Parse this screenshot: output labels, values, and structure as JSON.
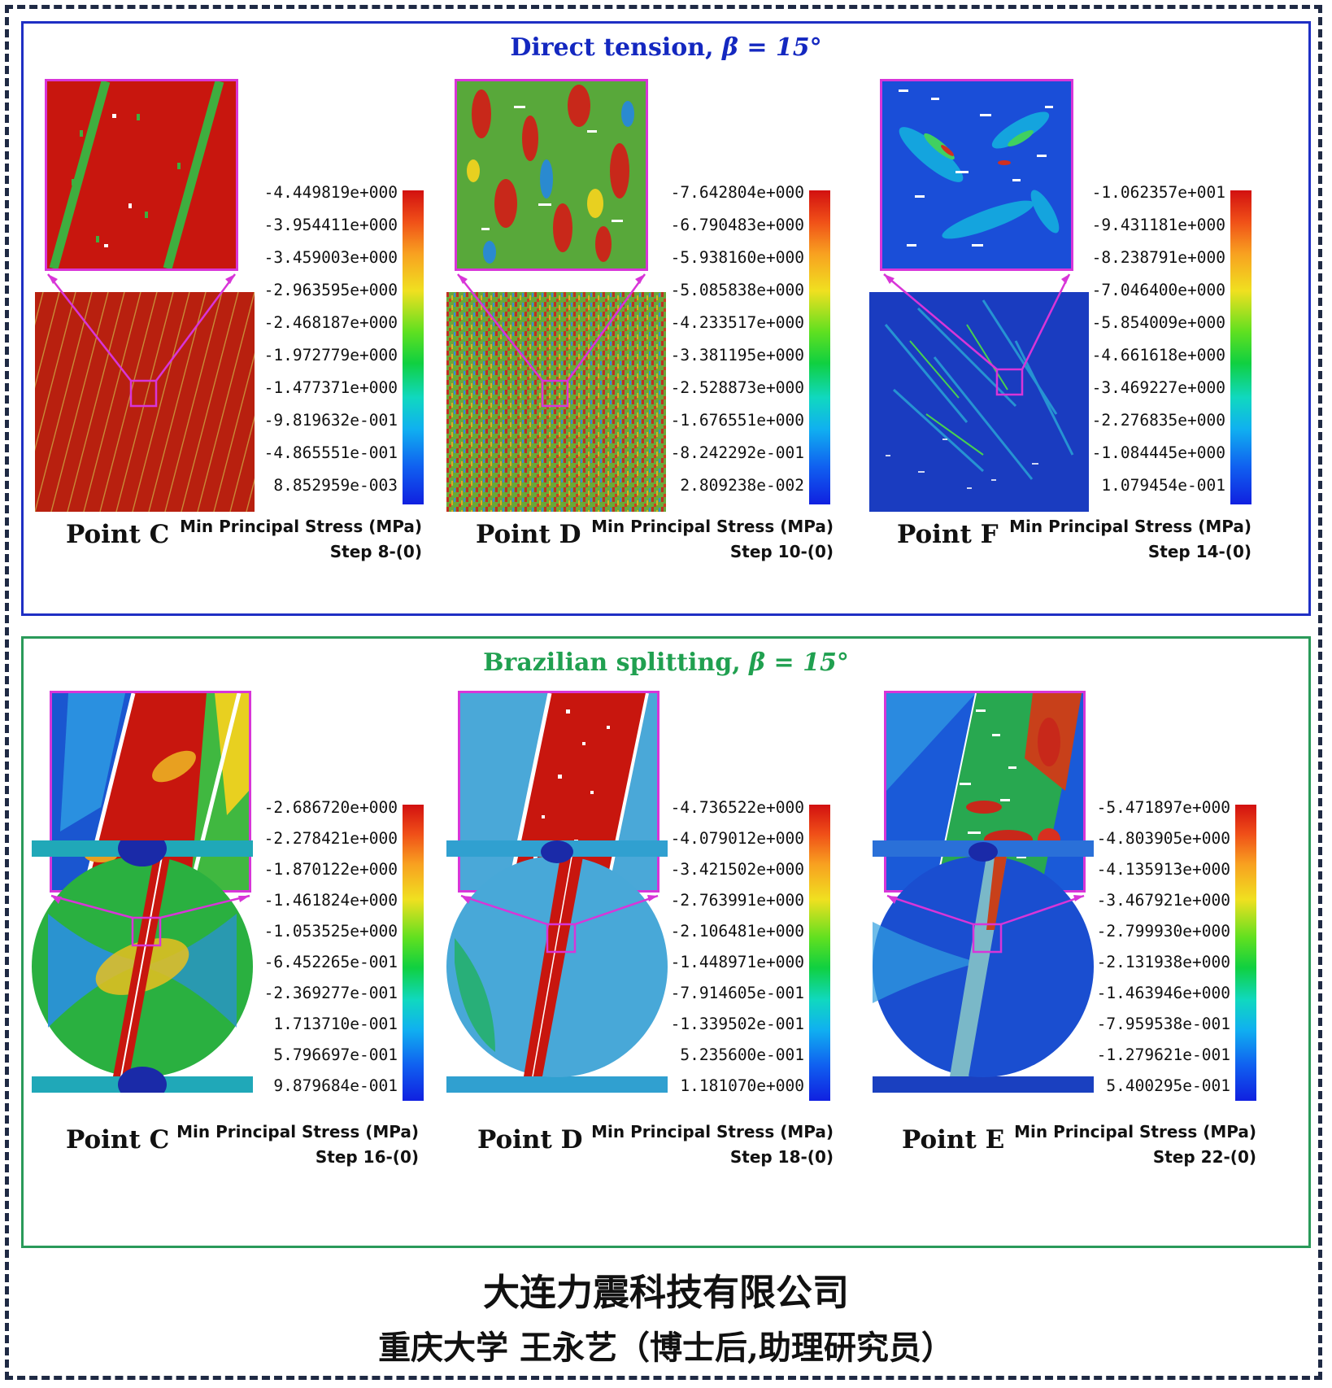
{
  "top_section": {
    "title_prefix": "Direct tension, ",
    "title_beta": "β = 15°",
    "panels": [
      {
        "point": "Point C",
        "stress_label": "Min Principal Stress (MPa)",
        "step": "Step 8-(0)",
        "legend": [
          "-4.449819e+000",
          "-3.954411e+000",
          "-3.459003e+000",
          "-2.963595e+000",
          "-2.468187e+000",
          "-1.972779e+000",
          "-1.477371e+000",
          "-9.819632e-001",
          "-4.865551e-001",
          "8.852959e-003"
        ]
      },
      {
        "point": "Point D",
        "stress_label": "Min Principal Stress (MPa)",
        "step": "Step 10-(0)",
        "legend": [
          "-7.642804e+000",
          "-6.790483e+000",
          "-5.938160e+000",
          "-5.085838e+000",
          "-4.233517e+000",
          "-3.381195e+000",
          "-2.528873e+000",
          "-1.676551e+000",
          "-8.242292e-001",
          "2.809238e-002"
        ]
      },
      {
        "point": "Point F",
        "stress_label": "Min Principal Stress (MPa)",
        "step": "Step 14-(0)",
        "legend": [
          "-1.062357e+001",
          "-9.431181e+000",
          "-8.238791e+000",
          "-7.046400e+000",
          "-5.854009e+000",
          "-4.661618e+000",
          "-3.469227e+000",
          "-2.276835e+000",
          "-1.084445e+000",
          "1.079454e-001"
        ]
      }
    ]
  },
  "bottom_section": {
    "title_prefix": "Brazilian splitting, ",
    "title_beta": "β = 15°",
    "panels": [
      {
        "point": "Point C",
        "stress_label": "Min Principal Stress (MPa)",
        "step": "Step 16-(0)",
        "legend": [
          "-2.686720e+000",
          "-2.278421e+000",
          "-1.870122e+000",
          "-1.461824e+000",
          "-1.053525e+000",
          "-6.452265e-001",
          "-2.369277e-001",
          "1.713710e-001",
          "5.796697e-001",
          "9.879684e-001"
        ]
      },
      {
        "point": "Point D",
        "stress_label": "Min Principal Stress (MPa)",
        "step": "Step 18-(0)",
        "legend": [
          "-4.736522e+000",
          "-4.079012e+000",
          "-3.421502e+000",
          "-2.763991e+000",
          "-2.106481e+000",
          "-1.448971e+000",
          "-7.914605e-001",
          "-1.339502e-001",
          "5.235600e-001",
          "1.181070e+000"
        ]
      },
      {
        "point": "Point E",
        "stress_label": "Min Principal Stress (MPa)",
        "step": "Step 22-(0)",
        "legend": [
          "-5.471897e+000",
          "-4.803905e+000",
          "-4.135913e+000",
          "-3.467921e+000",
          "-2.799930e+000",
          "-2.131938e+000",
          "-1.463946e+000",
          "-7.959538e-001",
          "-1.279621e-001",
          "5.400295e-001"
        ]
      }
    ]
  },
  "footer": {
    "line1": "大连力震科技有限公司",
    "line2": "重庆大学  王永艺（博士后,助理研究员）"
  },
  "colors": {
    "top_border": "#1f2fc4",
    "bottom_border": "#2a9a5a",
    "top_title": "#1428c0",
    "bottom_title": "#20a050",
    "zoom_border": "#d835d8"
  }
}
